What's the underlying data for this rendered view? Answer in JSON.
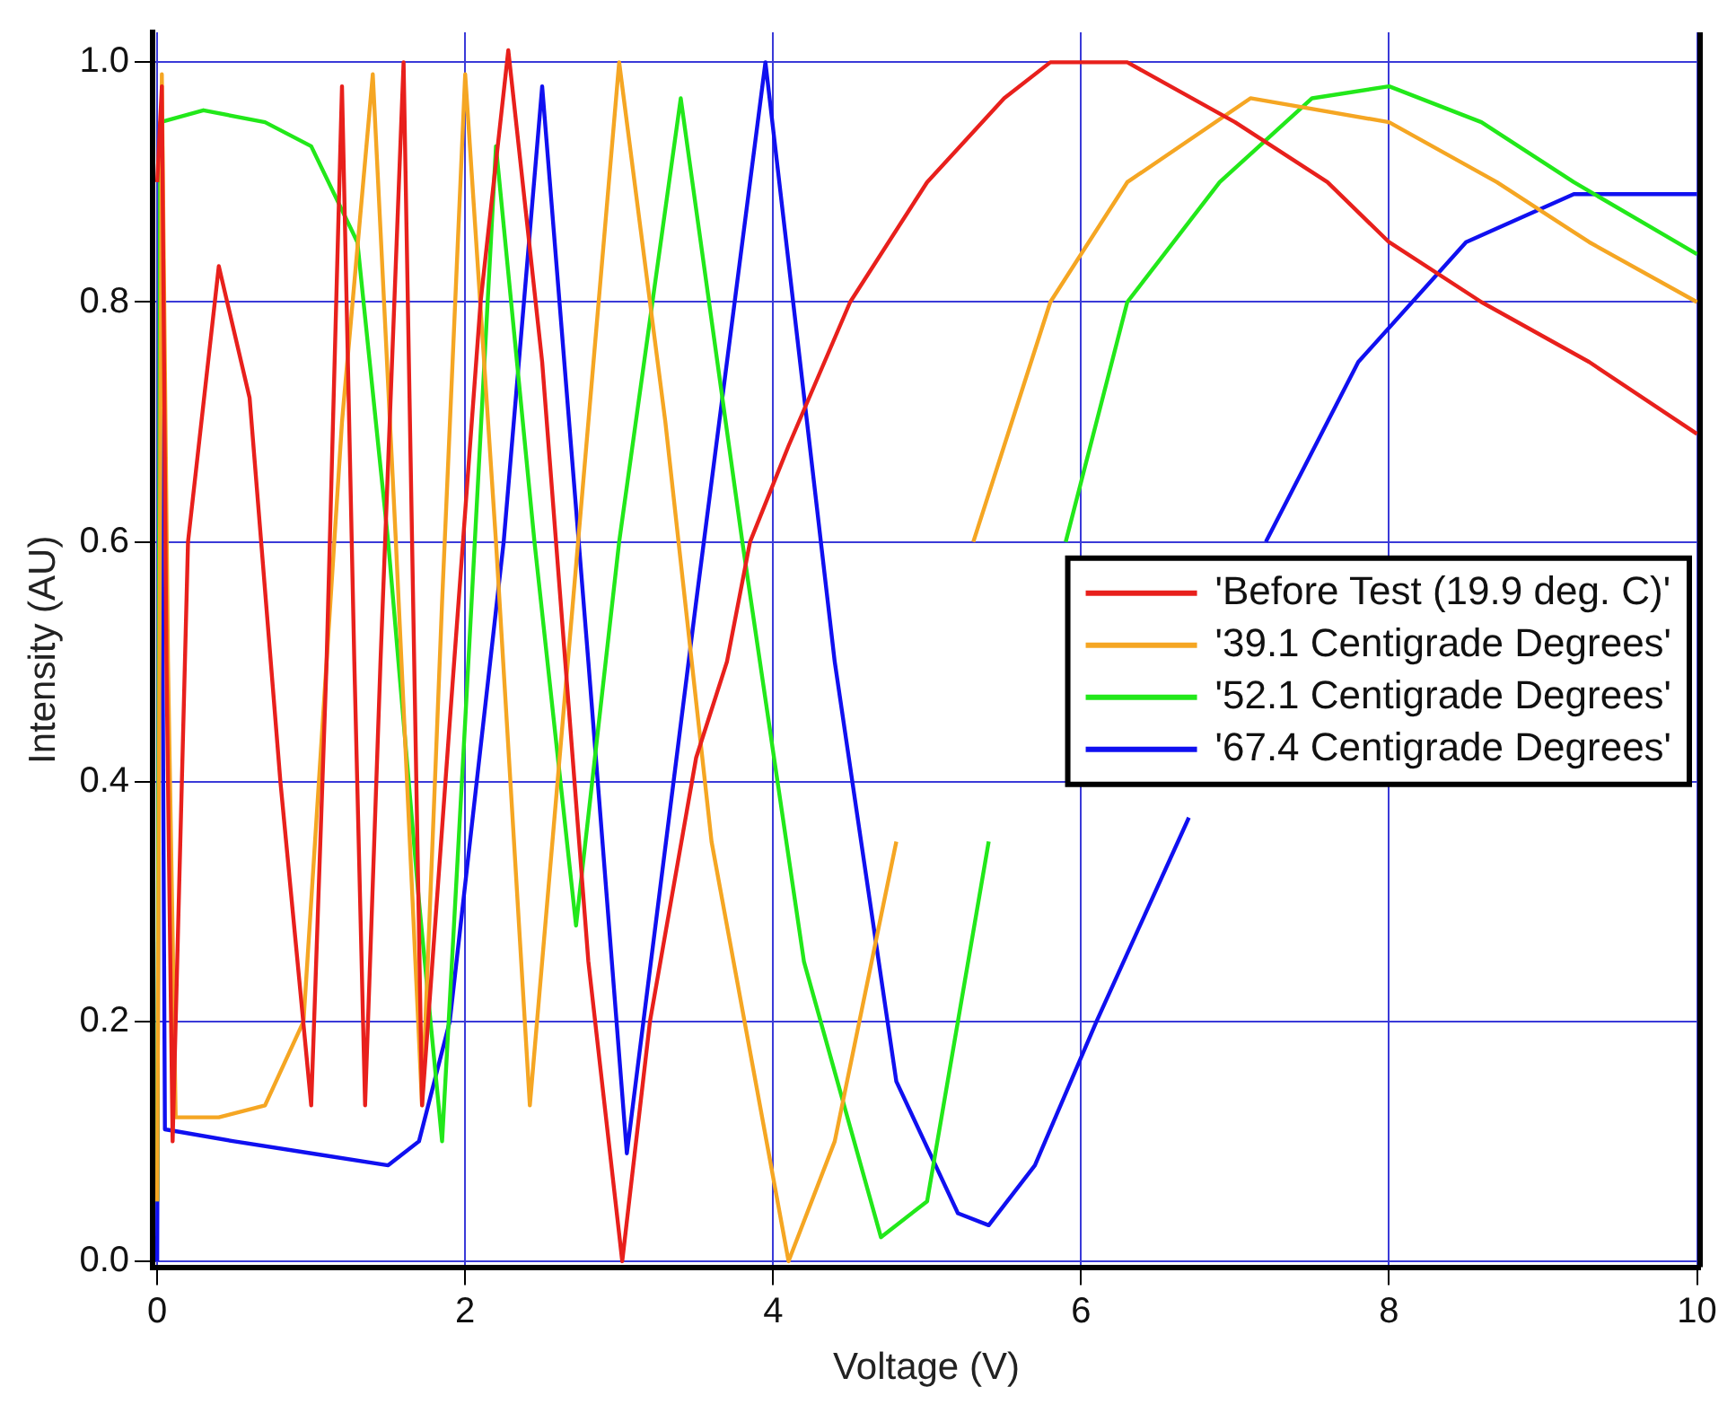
{
  "chart_data": {
    "type": "line",
    "xlabel": "Voltage (V)",
    "ylabel": "Intensity (AU)",
    "xlim": [
      -0.03,
      10.02
    ],
    "ylim": [
      -0.005,
      1.025
    ],
    "xticks": [
      0,
      2,
      4,
      6,
      8,
      10
    ],
    "yticks": [
      {
        "value": 0,
        "label": "0.0"
      },
      {
        "value": 0.2,
        "label": "0.2"
      },
      {
        "value": 0.4,
        "label": "0.4"
      },
      {
        "value": 0.6,
        "label": "0.6"
      },
      {
        "value": 0.8,
        "label": "0.8"
      },
      {
        "value": 1,
        "label": "1.0"
      }
    ],
    "grid": true,
    "legend": "right",
    "marker": "none",
    "line_style": "solid",
    "series": [
      {
        "name": "'Before Test (19.9 deg. C)'",
        "color": "#e8201c",
        "x": [
          0,
          0.03,
          0.06,
          0.1,
          0.2,
          0.4,
          0.6,
          0.8,
          1.0,
          1.1,
          1.2,
          1.28,
          1.35,
          1.45,
          1.6,
          1.72,
          1.9,
          2.1,
          2.28,
          2.5,
          2.8,
          3.02,
          3.2,
          3.5,
          3.7,
          3.85,
          4.1,
          4.5,
          5.0,
          5.5,
          5.8,
          6.3,
          7.0,
          7.6,
          8.0,
          8.6,
          9.3,
          10.0
        ],
        "values": [
          0.9,
          0.98,
          0.5,
          0.1,
          0.6,
          0.83,
          0.72,
          0.4,
          0.13,
          0.5,
          0.98,
          0.5,
          0.13,
          0.5,
          1.0,
          0.13,
          0.45,
          0.8,
          1.01,
          0.75,
          0.25,
          0.0,
          0.2,
          0.42,
          0.5,
          0.6,
          0.68,
          0.8,
          0.9,
          0.97,
          1.0,
          1.0,
          0.95,
          0.9,
          0.85,
          0.8,
          0.75,
          0.69
        ]
      },
      {
        "name": "'39.1 Centigrade Degrees'",
        "color": "#f5a623",
        "x": [
          0,
          0.03,
          0.07,
          0.12,
          0.4,
          0.7,
          0.95,
          1.2,
          1.4,
          1.55,
          1.72,
          1.85,
          2.0,
          2.2,
          2.42,
          2.7,
          3.0,
          3.3,
          3.6,
          4.1,
          4.4,
          4.8,
          4.81,
          5.3,
          5.8,
          6.3,
          7.1,
          8.0,
          8.7,
          9.3,
          10.0
        ],
        "values": [
          0.05,
          0.99,
          0.5,
          0.12,
          0.12,
          0.13,
          0.2,
          0.7,
          0.99,
          0.6,
          0.13,
          0.55,
          0.99,
          0.6,
          0.13,
          0.55,
          1.0,
          0.7,
          0.35,
          0.0,
          0.1,
          0.35,
          null,
          0.6,
          0.8,
          0.9,
          0.97,
          0.95,
          0.9,
          0.85,
          0.8
        ]
      },
      {
        "name": "'52.1 Centigrade Degrees'",
        "color": "#22e81a",
        "x": [
          0,
          0.02,
          0.3,
          0.7,
          1.0,
          1.3,
          1.5,
          1.7,
          1.85,
          2.0,
          2.2,
          2.45,
          2.72,
          3.0,
          3.4,
          3.8,
          4.2,
          4.7,
          5.0,
          5.4,
          5.41,
          5.9,
          6.3,
          6.9,
          7.5,
          8.0,
          8.6,
          9.2,
          10.0
        ],
        "values": [
          0.05,
          0.95,
          0.96,
          0.95,
          0.93,
          0.85,
          0.6,
          0.3,
          0.1,
          0.45,
          0.93,
          0.6,
          0.28,
          0.6,
          0.97,
          0.6,
          0.25,
          0.02,
          0.05,
          0.35,
          null,
          0.6,
          0.8,
          0.9,
          0.97,
          0.98,
          0.95,
          0.9,
          0.84
        ]
      },
      {
        "name": "'67.4 Centigrade Degrees'",
        "color": "#1010f0",
        "x": [
          0,
          0.02,
          0.05,
          0.5,
          1.0,
          1.5,
          1.7,
          1.9,
          2.25,
          2.5,
          2.8,
          3.05,
          3.5,
          3.95,
          4.4,
          4.8,
          5.2,
          5.4,
          5.7,
          6.1,
          6.7,
          6.71,
          7.2,
          7.8,
          8.5,
          9.2,
          10.0
        ],
        "values": [
          0.0,
          0.9,
          0.11,
          0.1,
          0.09,
          0.08,
          0.1,
          0.2,
          0.6,
          0.98,
          0.5,
          0.09,
          0.55,
          1.0,
          0.5,
          0.15,
          0.04,
          0.03,
          0.08,
          0.2,
          0.37,
          null,
          0.6,
          0.75,
          0.85,
          0.89,
          0.89
        ]
      }
    ]
  }
}
